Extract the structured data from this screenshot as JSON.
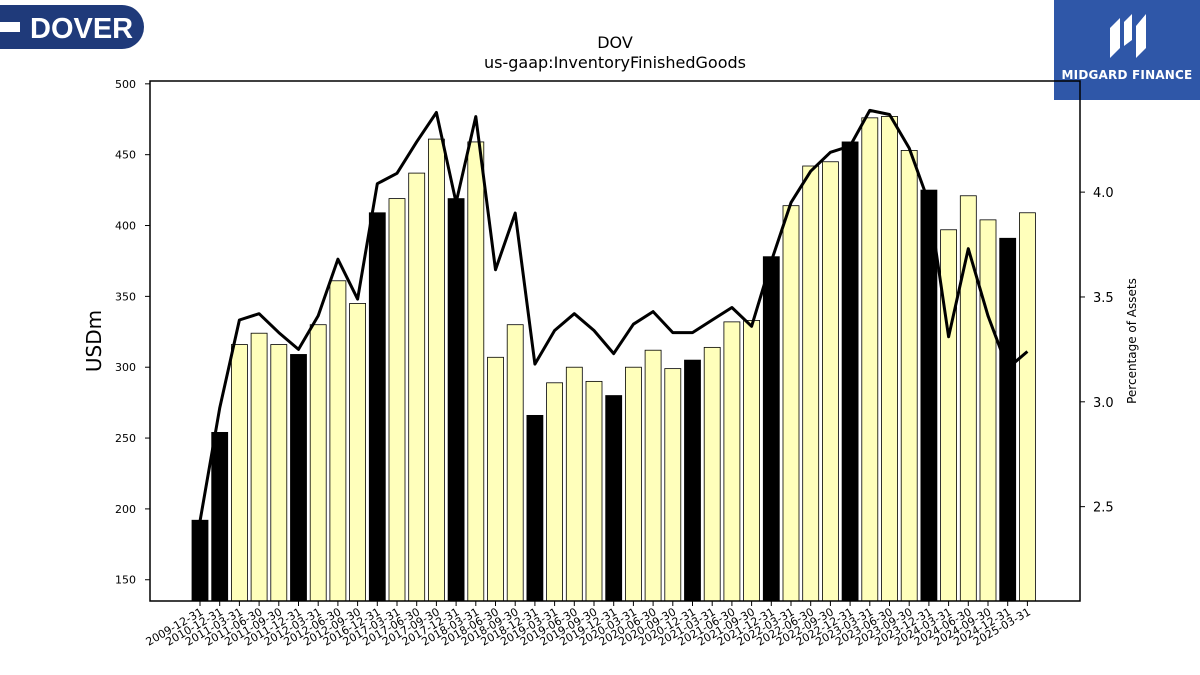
{
  "logos": {
    "left_text": "DOVER",
    "right_text": "MIDGARD FINANCE",
    "left_color": "#1f3a7a",
    "right_color": "#2f57a8"
  },
  "chart_data": {
    "type": "bar",
    "title": "DOV",
    "subtitle": "us-gaap:InventoryFinishedGoods",
    "ylabel": "USDm",
    "y2label": "Percentage of Assets",
    "ylim": [
      135,
      502
    ],
    "y2lim": [
      2.05,
      4.53
    ],
    "yticks": [
      150,
      200,
      250,
      300,
      350,
      400,
      450,
      500
    ],
    "y2ticks": [
      2.5,
      3.0,
      3.5,
      4.0
    ],
    "categories": [
      "2009-12-31",
      "2010-12-31",
      "2011-03-31",
      "2011-06-30",
      "2011-09-30",
      "2011-12-31",
      "2012-03-31",
      "2012-06-30",
      "2012-09-30",
      "2016-12-31",
      "2017-03-31",
      "2017-06-30",
      "2017-09-30",
      "2017-12-31",
      "2018-03-31",
      "2018-06-30",
      "2018-09-30",
      "2018-12-31",
      "2019-03-31",
      "2019-06-30",
      "2019-09-30",
      "2019-12-31",
      "2020-03-31",
      "2020-06-30",
      "2020-09-30",
      "2020-12-31",
      "2021-03-31",
      "2021-06-30",
      "2021-09-30",
      "2021-12-31",
      "2022-03-31",
      "2022-06-30",
      "2022-09-30",
      "2022-12-31",
      "2023-03-31",
      "2023-06-30",
      "2023-09-30",
      "2023-12-31",
      "2024-03-31",
      "2024-06-30",
      "2024-09-30",
      "2024-12-31",
      "2025-03-31"
    ],
    "values": [
      192,
      254,
      316,
      324,
      316,
      309,
      330,
      361,
      345,
      409,
      419,
      437,
      461,
      419,
      459,
      307,
      330,
      266,
      289,
      300,
      290,
      280,
      300,
      312,
      299,
      305,
      314,
      332,
      333,
      378,
      414,
      442,
      445,
      459,
      476,
      477,
      453,
      425,
      397,
      421,
      404,
      391,
      409
    ],
    "annual": [
      true,
      true,
      false,
      false,
      false,
      true,
      false,
      false,
      false,
      true,
      false,
      false,
      false,
      true,
      false,
      false,
      false,
      true,
      false,
      false,
      false,
      true,
      false,
      false,
      false,
      true,
      false,
      false,
      false,
      true,
      false,
      false,
      false,
      true,
      false,
      false,
      false,
      true,
      false,
      false,
      false,
      true,
      false
    ],
    "pct_of_assets": [
      2.43,
      2.97,
      3.39,
      3.42,
      3.33,
      3.25,
      3.41,
      3.68,
      3.49,
      4.04,
      4.09,
      4.24,
      4.38,
      3.95,
      4.36,
      3.63,
      3.9,
      3.18,
      3.34,
      3.42,
      3.34,
      3.23,
      3.37,
      3.43,
      3.33,
      3.33,
      3.39,
      3.45,
      3.36,
      3.67,
      3.95,
      4.1,
      4.19,
      4.22,
      4.39,
      4.37,
      4.21,
      3.95,
      3.31,
      3.73,
      3.41,
      3.16,
      3.24
    ],
    "colors": {
      "annual_bar": "#000000",
      "quarter_bar": "#ffffbb",
      "line": "#000000"
    },
    "grid": false,
    "legend": "none"
  }
}
